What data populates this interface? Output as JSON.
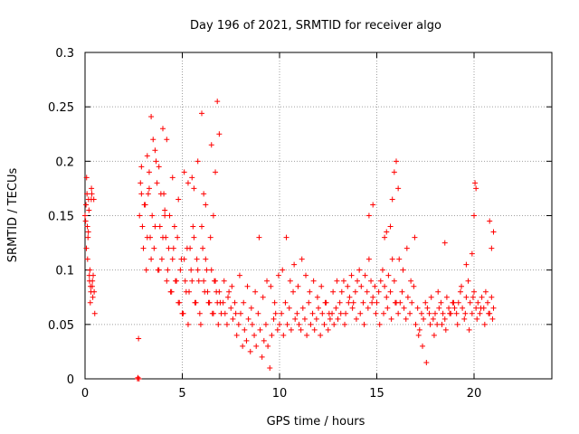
{
  "chart_data": {
    "type": "scatter",
    "title": "Day 196 of 2021, SRMTID for receiver algo",
    "xlabel": "GPS time / hours",
    "ylabel": "SRMTID / TECUs",
    "xlim": [
      0,
      24
    ],
    "ylim": [
      0,
      0.3
    ],
    "xticks": [
      0,
      5,
      10,
      15,
      20
    ],
    "xtick_labels": [
      "0",
      "5",
      "10",
      "15",
      "20"
    ],
    "yticks": [
      0,
      0.05,
      0.1,
      0.15,
      0.2,
      0.25,
      0.3
    ],
    "ytick_labels": [
      "0",
      "0.05",
      "0.1",
      "0.15",
      "0.2",
      "0.25",
      "0.3"
    ],
    "grid": true,
    "marker": "+",
    "color": "#ff0000",
    "series": [
      {
        "name": "SRMTID",
        "x": [
          0.0,
          0.05,
          0.08,
          0.1,
          0.12,
          0.15,
          0.18,
          0.2,
          0.22,
          0.25,
          0.28,
          0.3,
          0.33,
          0.35,
          0.38,
          0.4,
          0.45,
          0.5,
          0.03,
          0.07,
          0.13,
          0.17,
          0.23,
          0.27,
          0.32,
          0.37,
          0.42,
          0.47,
          2.7,
          2.72,
          2.75,
          2.78,
          2.8,
          2.9,
          3.0,
          3.1,
          3.2,
          3.3,
          3.4,
          3.5,
          3.6,
          3.7,
          3.8,
          3.9,
          4.0,
          4.1,
          4.2,
          4.3,
          4.4,
          4.5,
          4.6,
          4.7,
          4.8,
          4.9,
          5.0,
          5.1,
          5.2,
          5.3,
          5.4,
          5.5,
          5.6,
          5.7,
          5.8,
          5.9,
          6.0,
          6.1,
          6.2,
          6.3,
          6.4,
          6.5,
          6.6,
          6.7,
          6.8,
          6.9,
          7.0,
          2.85,
          2.95,
          3.05,
          3.15,
          3.25,
          3.35,
          3.45,
          3.55,
          3.65,
          3.75,
          3.85,
          3.95,
          4.05,
          4.15,
          4.25,
          4.35,
          4.45,
          4.55,
          4.65,
          4.75,
          4.85,
          4.95,
          5.05,
          5.15,
          5.25,
          5.35,
          5.45,
          5.55,
          5.65,
          5.75,
          5.85,
          5.95,
          6.05,
          6.15,
          6.25,
          6.35,
          6.45,
          6.55,
          6.65,
          6.75,
          6.85,
          6.95,
          3.4,
          3.6,
          4.0,
          4.2,
          5.1,
          5.6,
          6.0,
          6.5,
          6.8,
          6.9,
          3.2,
          3.8,
          4.5,
          5.3,
          5.8,
          6.2,
          6.7,
          2.9,
          3.3,
          4.1,
          4.8,
          5.5,
          6.1,
          6.6,
          7.1,
          7.2,
          7.3,
          7.4,
          7.5,
          7.6,
          7.7,
          7.8,
          7.9,
          8.0,
          8.1,
          8.2,
          8.3,
          8.4,
          8.5,
          8.6,
          8.7,
          8.8,
          8.9,
          9.0,
          9.1,
          9.2,
          9.3,
          9.4,
          9.5,
          9.6,
          9.7,
          9.8,
          9.9,
          10.0,
          7.15,
          7.35,
          7.55,
          7.75,
          7.95,
          8.15,
          8.35,
          8.55,
          8.75,
          8.95,
          9.15,
          9.35,
          9.55,
          9.75,
          9.95,
          10.1,
          10.2,
          10.3,
          10.4,
          10.5,
          10.6,
          10.7,
          10.8,
          10.9,
          11.0,
          11.1,
          11.2,
          11.3,
          11.4,
          11.5,
          11.6,
          11.7,
          11.8,
          11.9,
          12.0,
          12.1,
          12.2,
          12.3,
          12.4,
          12.5,
          12.6,
          12.7,
          12.8,
          12.9,
          13.0,
          10.15,
          10.35,
          10.55,
          10.75,
          10.95,
          11.15,
          11.35,
          11.55,
          11.75,
          11.95,
          12.15,
          12.35,
          12.55,
          12.75,
          12.95,
          13.1,
          13.2,
          13.3,
          13.4,
          13.5,
          13.6,
          13.7,
          13.8,
          13.9,
          14.0,
          14.1,
          14.2,
          14.3,
          14.4,
          14.5,
          14.6,
          14.7,
          14.8,
          14.9,
          15.0,
          15.1,
          15.2,
          15.3,
          15.4,
          15.5,
          15.6,
          15.7,
          15.8,
          15.9,
          16.0,
          13.15,
          13.35,
          13.55,
          13.75,
          13.95,
          14.15,
          14.35,
          14.55,
          14.75,
          14.95,
          15.15,
          15.35,
          15.55,
          15.75,
          15.95,
          14.6,
          14.8,
          15.4,
          15.7,
          15.9,
          16.0,
          16.1,
          15.8,
          15.5,
          16.1,
          16.2,
          16.3,
          16.4,
          16.5,
          16.6,
          16.7,
          16.8,
          16.9,
          17.0,
          17.1,
          17.2,
          17.3,
          17.4,
          17.5,
          17.6,
          17.7,
          17.8,
          17.9,
          18.0,
          18.1,
          18.2,
          18.3,
          18.4,
          18.5,
          18.6,
          18.7,
          18.8,
          18.9,
          19.0,
          16.15,
          16.35,
          16.55,
          16.75,
          16.95,
          17.15,
          17.35,
          17.55,
          17.75,
          17.95,
          18.15,
          18.35,
          18.55,
          18.75,
          18.95,
          19.1,
          19.2,
          19.3,
          19.4,
          19.5,
          19.6,
          19.7,
          19.8,
          19.9,
          20.0,
          20.1,
          20.2,
          20.3,
          20.4,
          20.5,
          20.6,
          20.7,
          20.8,
          20.9,
          21.0,
          19.15,
          19.35,
          19.55,
          19.75,
          19.95,
          20.15,
          20.35,
          20.55,
          20.75,
          20.95,
          19.9,
          20.0,
          20.05,
          20.1,
          20.8,
          20.9,
          21.0,
          19.6,
          18.5
        ],
        "y": [
          0.15,
          0.16,
          0.185,
          0.17,
          0.14,
          0.13,
          0.165,
          0.155,
          0.095,
          0.1,
          0.085,
          0.08,
          0.175,
          0.17,
          0.09,
          0.075,
          0.165,
          0.06,
          0.145,
          0.12,
          0.11,
          0.135,
          0.09,
          0.07,
          0.165,
          0.085,
          0.095,
          0.08,
          0.0,
          0.001,
          0.037,
          0.0,
          0.15,
          0.17,
          0.12,
          0.16,
          0.13,
          0.19,
          0.11,
          0.22,
          0.14,
          0.18,
          0.1,
          0.17,
          0.13,
          0.15,
          0.09,
          0.12,
          0.08,
          0.11,
          0.14,
          0.09,
          0.07,
          0.1,
          0.06,
          0.11,
          0.08,
          0.05,
          0.12,
          0.09,
          0.13,
          0.07,
          0.1,
          0.06,
          0.14,
          0.09,
          0.11,
          0.08,
          0.07,
          0.1,
          0.06,
          0.09,
          0.07,
          0.08,
          0.06,
          0.18,
          0.14,
          0.16,
          0.1,
          0.17,
          0.13,
          0.15,
          0.12,
          0.2,
          0.1,
          0.14,
          0.11,
          0.17,
          0.13,
          0.1,
          0.15,
          0.08,
          0.12,
          0.09,
          0.13,
          0.07,
          0.11,
          0.06,
          0.09,
          0.12,
          0.08,
          0.1,
          0.14,
          0.07,
          0.11,
          0.09,
          0.05,
          0.12,
          0.08,
          0.1,
          0.07,
          0.13,
          0.06,
          0.09,
          0.08,
          0.05,
          0.07,
          0.241,
          0.21,
          0.23,
          0.22,
          0.19,
          0.175,
          0.244,
          0.215,
          0.255,
          0.225,
          0.205,
          0.195,
          0.185,
          0.18,
          0.2,
          0.16,
          0.19,
          0.195,
          0.175,
          0.155,
          0.165,
          0.185,
          0.17,
          0.15,
          0.07,
          0.06,
          0.05,
          0.08,
          0.065,
          0.055,
          0.07,
          0.04,
          0.05,
          0.06,
          0.03,
          0.045,
          0.035,
          0.055,
          0.025,
          0.05,
          0.04,
          0.03,
          0.06,
          0.045,
          0.02,
          0.035,
          0.05,
          0.03,
          0.01,
          0.04,
          0.055,
          0.06,
          0.045,
          0.05,
          0.09,
          0.075,
          0.085,
          0.06,
          0.095,
          0.07,
          0.085,
          0.065,
          0.08,
          0.13,
          0.075,
          0.09,
          0.085,
          0.07,
          0.095,
          0.06,
          0.04,
          0.07,
          0.05,
          0.065,
          0.045,
          0.08,
          0.055,
          0.06,
          0.05,
          0.045,
          0.065,
          0.055,
          0.04,
          0.07,
          0.05,
          0.06,
          0.045,
          0.055,
          0.065,
          0.04,
          0.06,
          0.05,
          0.07,
          0.045,
          0.055,
          0.06,
          0.05,
          0.065,
          0.055,
          0.1,
          0.13,
          0.09,
          0.105,
          0.085,
          0.11,
          0.095,
          0.08,
          0.09,
          0.075,
          0.085,
          0.07,
          0.06,
          0.08,
          0.09,
          0.07,
          0.08,
          0.09,
          0.06,
          0.085,
          0.075,
          0.095,
          0.07,
          0.08,
          0.09,
          0.1,
          0.085,
          0.07,
          0.095,
          0.08,
          0.11,
          0.09,
          0.075,
          0.085,
          0.07,
          0.08,
          0.09,
          0.1,
          0.085,
          0.075,
          0.095,
          0.08,
          0.11,
          0.09,
          0.07,
          0.06,
          0.05,
          0.07,
          0.065,
          0.055,
          0.06,
          0.05,
          0.065,
          0.07,
          0.06,
          0.05,
          0.06,
          0.065,
          0.055,
          0.07,
          0.15,
          0.16,
          0.13,
          0.14,
          0.19,
          0.2,
          0.175,
          0.165,
          0.135,
          0.06,
          0.07,
          0.08,
          0.065,
          0.055,
          0.075,
          0.06,
          0.07,
          0.085,
          0.05,
          0.065,
          0.045,
          0.06,
          0.055,
          0.07,
          0.065,
          0.06,
          0.075,
          0.055,
          0.06,
          0.05,
          0.065,
          0.07,
          0.06,
          0.055,
          0.075,
          0.065,
          0.06,
          0.07,
          0.065,
          0.11,
          0.1,
          0.12,
          0.09,
          0.13,
          0.04,
          0.03,
          0.015,
          0.05,
          0.04,
          0.08,
          0.05,
          0.045,
          0.06,
          0.07,
          0.06,
          0.07,
          0.08,
          0.065,
          0.055,
          0.075,
          0.09,
          0.07,
          0.06,
          0.08,
          0.065,
          0.07,
          0.06,
          0.075,
          0.065,
          0.08,
          0.07,
          0.06,
          0.075,
          0.065,
          0.05,
          0.085,
          0.06,
          0.045,
          0.075,
          0.055,
          0.065,
          0.05,
          0.06,
          0.055,
          0.115,
          0.15,
          0.18,
          0.175,
          0.145,
          0.12,
          0.135,
          0.105,
          0.125
        ]
      }
    ]
  }
}
